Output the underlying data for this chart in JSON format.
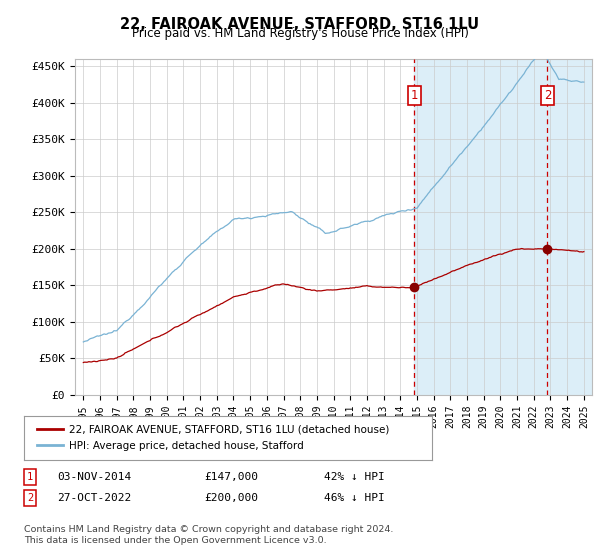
{
  "title": "22, FAIROAK AVENUE, STAFFORD, ST16 1LU",
  "subtitle": "Price paid vs. HM Land Registry's House Price Index (HPI)",
  "ylim": [
    0,
    460000
  ],
  "yticks": [
    0,
    50000,
    100000,
    150000,
    200000,
    250000,
    300000,
    350000,
    400000,
    450000
  ],
  "ytick_labels": [
    "£0",
    "£50K",
    "£100K",
    "£150K",
    "£200K",
    "£250K",
    "£300K",
    "£350K",
    "£400K",
    "£450K"
  ],
  "hpi_color": "#7ab3d4",
  "price_color": "#aa0000",
  "transaction1_date": 2014.84,
  "transaction1_price": 147000,
  "transaction2_date": 2022.82,
  "transaction2_price": 200000,
  "vline_color": "#cc0000",
  "shade_color": "#dceef8",
  "legend_label_red": "22, FAIROAK AVENUE, STAFFORD, ST16 1LU (detached house)",
  "legend_label_blue": "HPI: Average price, detached house, Stafford",
  "table_row1": [
    "1",
    "03-NOV-2014",
    "£147,000",
    "42% ↓ HPI"
  ],
  "table_row2": [
    "2",
    "27-OCT-2022",
    "£200,000",
    "46% ↓ HPI"
  ],
  "footnote": "Contains HM Land Registry data © Crown copyright and database right 2024.\nThis data is licensed under the Open Government Licence v3.0.",
  "background_color": "#ffffff",
  "grid_color": "#cccccc"
}
